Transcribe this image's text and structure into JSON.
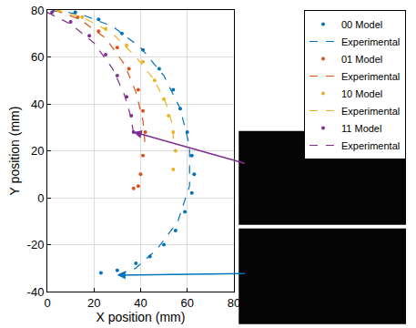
{
  "chart_data": {
    "type": "scatter",
    "x_label": "X position (mm)",
    "y_label": "Y position (mm)",
    "xlim": [
      0,
      80
    ],
    "ylim": [
      -40,
      80
    ],
    "xticks": [
      0,
      20,
      40,
      60,
      80
    ],
    "yticks": [
      -40,
      -20,
      0,
      20,
      40,
      60,
      80
    ],
    "grid": true,
    "legend": "top right",
    "series": [
      {
        "name": "00 Model",
        "type": "scatter",
        "marker": "circle",
        "color": "#0072BD",
        "x": [
          3,
          12,
          22,
          32,
          41,
          48,
          54,
          57,
          60,
          62,
          63,
          62,
          59,
          55,
          50,
          44,
          38,
          30,
          23
        ],
        "values": [
          80,
          79,
          76,
          70,
          63,
          55,
          46,
          38,
          28,
          18,
          10,
          2,
          -6,
          -14,
          -20,
          -25,
          -28,
          -31,
          -32
        ]
      },
      {
        "name": "Experimental",
        "type": "line",
        "line_style": "dash",
        "color": "#0072BD",
        "x": [
          2,
          15,
          28,
          40,
          50,
          57,
          61,
          61,
          56,
          47,
          38,
          30
        ],
        "values": [
          80,
          78,
          73,
          64,
          52,
          38,
          22,
          5,
          -10,
          -22,
          -30,
          -33
        ]
      },
      {
        "name": "01 Model",
        "type": "scatter",
        "marker": "circle",
        "color": "#D95319",
        "x": [
          4,
          13,
          22,
          30,
          35,
          39,
          41,
          42,
          41,
          40,
          39,
          37
        ],
        "values": [
          80,
          77,
          71,
          64,
          55,
          46,
          37,
          28,
          18,
          10,
          5,
          4
        ]
      },
      {
        "name": "Experimental",
        "type": "line",
        "line_style": "dash",
        "color": "#D95319",
        "x": [
          3,
          14,
          25,
          33,
          38,
          41,
          42
        ],
        "values": [
          80,
          76,
          68,
          57,
          45,
          33,
          22
        ]
      },
      {
        "name": "10 Model",
        "type": "scatter",
        "marker": "circle",
        "color": "#EDB120",
        "x": [
          5,
          15,
          25,
          34,
          41,
          46,
          50,
          52,
          54,
          55,
          54
        ],
        "values": [
          80,
          77,
          72,
          65,
          58,
          50,
          42,
          35,
          28,
          20,
          12
        ]
      },
      {
        "name": "Experimental",
        "type": "line",
        "line_style": "dash",
        "color": "#EDB120",
        "x": [
          3,
          15,
          28,
          38,
          46,
          51,
          54,
          54
        ],
        "values": [
          80,
          77,
          70,
          60,
          50,
          40,
          30,
          22
        ]
      },
      {
        "name": "11 Model",
        "type": "scatter",
        "marker": "circle",
        "color": "#7E2F8E",
        "x": [
          2,
          10,
          18,
          25,
          30,
          34,
          36,
          37
        ],
        "values": [
          79,
          75,
          69,
          61,
          52,
          43,
          35,
          28
        ]
      },
      {
        "name": "Experimental",
        "type": "line",
        "line_style": "dash",
        "color": "#7E2F8E",
        "x": [
          0,
          10,
          20,
          28,
          33,
          36,
          37
        ],
        "values": [
          79,
          74,
          66,
          55,
          44,
          34,
          27
        ]
      }
    ]
  }
}
